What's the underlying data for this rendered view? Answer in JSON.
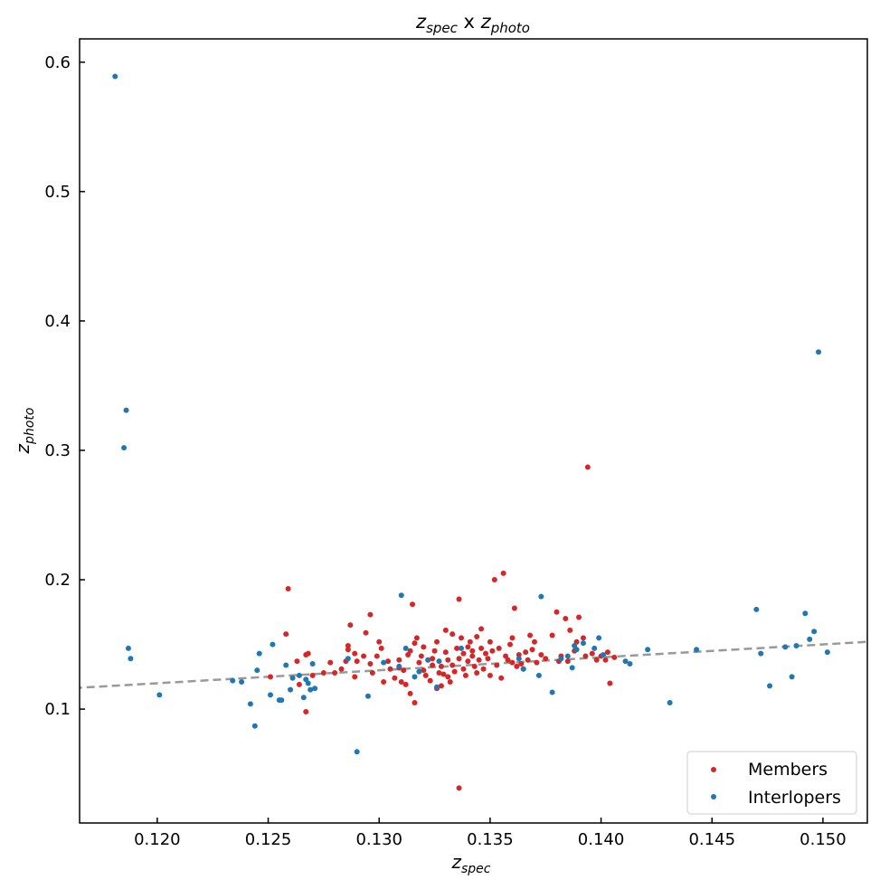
{
  "chart_data": {
    "type": "scatter",
    "title": {
      "base": "z",
      "sub1": "spec",
      "mid": " x ",
      "base2": "z",
      "sub2": "photo"
    },
    "xlabel": {
      "base": "z",
      "sub": "spec"
    },
    "ylabel": {
      "base": "z",
      "sub": "photo"
    },
    "xlim": [
      0.1165,
      0.152
    ],
    "ylim": [
      0.012,
      0.618
    ],
    "xticks": [
      0.12,
      0.125,
      0.13,
      0.135,
      0.14,
      0.145,
      0.15
    ],
    "xtick_labels": [
      "0.120",
      "0.125",
      "0.130",
      "0.135",
      "0.140",
      "0.145",
      "0.150"
    ],
    "yticks": [
      0.1,
      0.2,
      0.3,
      0.4,
      0.5,
      0.6
    ],
    "ytick_labels": [
      "0.1",
      "0.2",
      "0.3",
      "0.4",
      "0.5",
      "0.6"
    ],
    "reference_line": {
      "style": "dashed",
      "relation": "y = x",
      "color": "#999999"
    },
    "grid": false,
    "legend": "lower-right",
    "series": [
      {
        "name": "Members",
        "color": "#d62728",
        "points": [
          [
            0.1259,
            0.193
          ],
          [
            0.1258,
            0.158
          ],
          [
            0.1251,
            0.125
          ],
          [
            0.1263,
            0.137
          ],
          [
            0.1264,
            0.119
          ],
          [
            0.1267,
            0.142
          ],
          [
            0.1268,
            0.143
          ],
          [
            0.1267,
            0.098
          ],
          [
            0.127,
            0.126
          ],
          [
            0.1275,
            0.128
          ],
          [
            0.1278,
            0.136
          ],
          [
            0.128,
            0.128
          ],
          [
            0.1283,
            0.131
          ],
          [
            0.1285,
            0.137
          ],
          [
            0.1286,
            0.149
          ],
          [
            0.1286,
            0.146
          ],
          [
            0.1287,
            0.165
          ],
          [
            0.1289,
            0.143
          ],
          [
            0.129,
            0.137
          ],
          [
            0.1289,
            0.125
          ],
          [
            0.1293,
            0.141
          ],
          [
            0.1294,
            0.159
          ],
          [
            0.1296,
            0.173
          ],
          [
            0.1296,
            0.135
          ],
          [
            0.1297,
            0.128
          ],
          [
            0.1299,
            0.141
          ],
          [
            0.13,
            0.152
          ],
          [
            0.1301,
            0.147
          ],
          [
            0.1302,
            0.121
          ],
          [
            0.1304,
            0.137
          ],
          [
            0.1305,
            0.131
          ],
          [
            0.1307,
            0.124
          ],
          [
            0.1309,
            0.132
          ],
          [
            0.1309,
            0.138
          ],
          [
            0.131,
            0.121
          ],
          [
            0.1311,
            0.13
          ],
          [
            0.1312,
            0.119
          ],
          [
            0.1313,
            0.142
          ],
          [
            0.1314,
            0.145
          ],
          [
            0.1314,
            0.112
          ],
          [
            0.1315,
            0.181
          ],
          [
            0.1316,
            0.151
          ],
          [
            0.1316,
            0.105
          ],
          [
            0.1317,
            0.155
          ],
          [
            0.1318,
            0.136
          ],
          [
            0.1319,
            0.141
          ],
          [
            0.132,
            0.13
          ],
          [
            0.132,
            0.148
          ],
          [
            0.1321,
            0.126
          ],
          [
            0.1322,
            0.138
          ],
          [
            0.1323,
            0.122
          ],
          [
            0.1324,
            0.134
          ],
          [
            0.1324,
            0.139
          ],
          [
            0.1325,
            0.145
          ],
          [
            0.1326,
            0.152
          ],
          [
            0.1326,
            0.116
          ],
          [
            0.1327,
            0.128
          ],
          [
            0.1328,
            0.133
          ],
          [
            0.1328,
            0.118
          ],
          [
            0.1329,
            0.127
          ],
          [
            0.133,
            0.161
          ],
          [
            0.133,
            0.144
          ],
          [
            0.1331,
            0.125
          ],
          [
            0.1331,
            0.138
          ],
          [
            0.1332,
            0.121
          ],
          [
            0.1333,
            0.134
          ],
          [
            0.1333,
            0.158
          ],
          [
            0.1334,
            0.129
          ],
          [
            0.1335,
            0.147
          ],
          [
            0.1336,
            0.139
          ],
          [
            0.1336,
            0.185
          ],
          [
            0.1337,
            0.155
          ],
          [
            0.1338,
            0.143
          ],
          [
            0.1338,
            0.131
          ],
          [
            0.1339,
            0.126
          ],
          [
            0.134,
            0.148
          ],
          [
            0.134,
            0.137
          ],
          [
            0.1341,
            0.152
          ],
          [
            0.1342,
            0.141
          ],
          [
            0.1342,
            0.145
          ],
          [
            0.1343,
            0.133
          ],
          [
            0.1344,
            0.156
          ],
          [
            0.1344,
            0.128
          ],
          [
            0.1345,
            0.138
          ],
          [
            0.1346,
            0.147
          ],
          [
            0.1346,
            0.162
          ],
          [
            0.1347,
            0.131
          ],
          [
            0.1348,
            0.143
          ],
          [
            0.1349,
            0.139
          ],
          [
            0.135,
            0.126
          ],
          [
            0.135,
            0.152
          ],
          [
            0.1351,
            0.145
          ],
          [
            0.1352,
            0.2
          ],
          [
            0.1353,
            0.134
          ],
          [
            0.1354,
            0.147
          ],
          [
            0.1355,
            0.124
          ],
          [
            0.1356,
            0.205
          ],
          [
            0.1357,
            0.141
          ],
          [
            0.1358,
            0.138
          ],
          [
            0.1359,
            0.15
          ],
          [
            0.136,
            0.155
          ],
          [
            0.136,
            0.136
          ],
          [
            0.1361,
            0.178
          ],
          [
            0.1362,
            0.133
          ],
          [
            0.1363,
            0.142
          ],
          [
            0.1364,
            0.135
          ],
          [
            0.1365,
            0.131
          ],
          [
            0.1366,
            0.144
          ],
          [
            0.1367,
            0.138
          ],
          [
            0.1368,
            0.157
          ],
          [
            0.1369,
            0.146
          ],
          [
            0.137,
            0.152
          ],
          [
            0.1371,
            0.136
          ],
          [
            0.1373,
            0.142
          ],
          [
            0.1375,
            0.139
          ],
          [
            0.1378,
            0.157
          ],
          [
            0.138,
            0.175
          ],
          [
            0.1381,
            0.137
          ],
          [
            0.1382,
            0.141
          ],
          [
            0.1384,
            0.17
          ],
          [
            0.1385,
            0.137
          ],
          [
            0.1386,
            0.161
          ],
          [
            0.1388,
            0.145
          ],
          [
            0.1389,
            0.152
          ],
          [
            0.139,
            0.171
          ],
          [
            0.1392,
            0.155
          ],
          [
            0.1393,
            0.141
          ],
          [
            0.1394,
            0.287
          ],
          [
            0.1396,
            0.143
          ],
          [
            0.1398,
            0.138
          ],
          [
            0.14,
            0.141
          ],
          [
            0.1402,
            0.138
          ],
          [
            0.1403,
            0.144
          ],
          [
            0.1404,
            0.12
          ],
          [
            0.1406,
            0.14
          ],
          [
            0.1336,
            0.039
          ]
        ]
      },
      {
        "name": "Interlopers",
        "color": "#1f77b4",
        "points": [
          [
            0.1181,
            0.589
          ],
          [
            0.1186,
            0.331
          ],
          [
            0.1185,
            0.302
          ],
          [
            0.1187,
            0.147
          ],
          [
            0.1188,
            0.139
          ],
          [
            0.1201,
            0.111
          ],
          [
            0.1234,
            0.122
          ],
          [
            0.1238,
            0.121
          ],
          [
            0.1242,
            0.104
          ],
          [
            0.1244,
            0.087
          ],
          [
            0.1245,
            0.13
          ],
          [
            0.1246,
            0.143
          ],
          [
            0.1251,
            0.111
          ],
          [
            0.1252,
            0.15
          ],
          [
            0.1255,
            0.107
          ],
          [
            0.1256,
            0.107
          ],
          [
            0.1258,
            0.134
          ],
          [
            0.126,
            0.115
          ],
          [
            0.1261,
            0.124
          ],
          [
            0.1264,
            0.126
          ],
          [
            0.1266,
            0.109
          ],
          [
            0.1267,
            0.123
          ],
          [
            0.1268,
            0.12
          ],
          [
            0.1269,
            0.115
          ],
          [
            0.127,
            0.135
          ],
          [
            0.1271,
            0.116
          ],
          [
            0.1286,
            0.139
          ],
          [
            0.129,
            0.067
          ],
          [
            0.1295,
            0.11
          ],
          [
            0.1302,
            0.136
          ],
          [
            0.1309,
            0.133
          ],
          [
            0.131,
            0.188
          ],
          [
            0.1312,
            0.147
          ],
          [
            0.1316,
            0.125
          ],
          [
            0.1318,
            0.129
          ],
          [
            0.1322,
            0.138
          ],
          [
            0.1326,
            0.117
          ],
          [
            0.1327,
            0.137
          ],
          [
            0.1337,
            0.147
          ],
          [
            0.1363,
            0.139
          ],
          [
            0.1365,
            0.131
          ],
          [
            0.1372,
            0.126
          ],
          [
            0.1373,
            0.187
          ],
          [
            0.1378,
            0.113
          ],
          [
            0.1382,
            0.139
          ],
          [
            0.1385,
            0.141
          ],
          [
            0.1387,
            0.132
          ],
          [
            0.1388,
            0.149
          ],
          [
            0.1389,
            0.146
          ],
          [
            0.1392,
            0.151
          ],
          [
            0.1397,
            0.147
          ],
          [
            0.1399,
            0.155
          ],
          [
            0.1401,
            0.142
          ],
          [
            0.1411,
            0.137
          ],
          [
            0.1413,
            0.135
          ],
          [
            0.1421,
            0.146
          ],
          [
            0.1431,
            0.105
          ],
          [
            0.1443,
            0.146
          ],
          [
            0.147,
            0.177
          ],
          [
            0.1472,
            0.143
          ],
          [
            0.1476,
            0.118
          ],
          [
            0.1483,
            0.148
          ],
          [
            0.1486,
            0.125
          ],
          [
            0.1488,
            0.149
          ],
          [
            0.1492,
            0.174
          ],
          [
            0.1494,
            0.154
          ],
          [
            0.1496,
            0.16
          ],
          [
            0.1498,
            0.376
          ],
          [
            0.1502,
            0.144
          ]
        ]
      }
    ]
  }
}
